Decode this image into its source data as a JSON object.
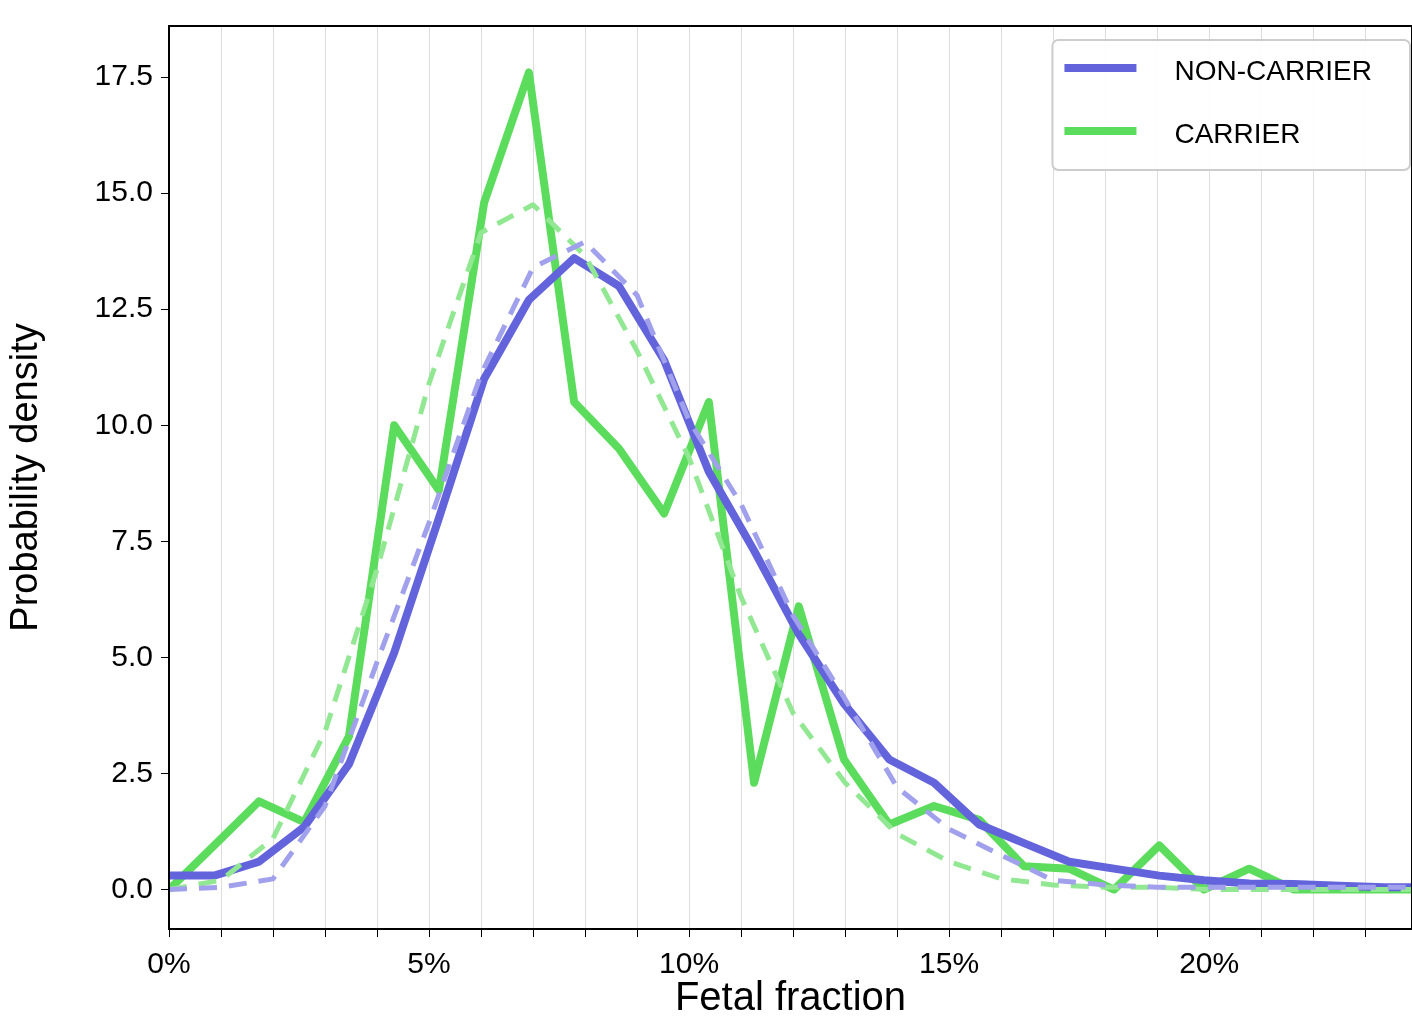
{
  "chart_data": {
    "type": "line",
    "xlabel": "Fetal fraction",
    "ylabel": "Probability density",
    "xlim": [
      0,
      23.9
    ],
    "ylim": [
      -0.85,
      18.6
    ],
    "xticks": [
      {
        "value": 0,
        "label": "0%"
      },
      {
        "value": 1,
        "label": null
      },
      {
        "value": 2,
        "label": null
      },
      {
        "value": 3,
        "label": null
      },
      {
        "value": 4,
        "label": null
      },
      {
        "value": 5,
        "label": "5%"
      },
      {
        "value": 6,
        "label": null
      },
      {
        "value": 7,
        "label": null
      },
      {
        "value": 8,
        "label": null
      },
      {
        "value": 9,
        "label": null
      },
      {
        "value": 10,
        "label": "10%"
      },
      {
        "value": 11,
        "label": null
      },
      {
        "value": 12,
        "label": null
      },
      {
        "value": 13,
        "label": null
      },
      {
        "value": 14,
        "label": null
      },
      {
        "value": 15,
        "label": "15%"
      },
      {
        "value": 16,
        "label": null
      },
      {
        "value": 17,
        "label": null
      },
      {
        "value": 18,
        "label": null
      },
      {
        "value": 19,
        "label": null
      },
      {
        "value": 20,
        "label": "20%"
      },
      {
        "value": 21,
        "label": null
      },
      {
        "value": 22,
        "label": null
      },
      {
        "value": 23,
        "label": null
      }
    ],
    "yticks": [
      {
        "value": 0,
        "label": "0.0"
      },
      2.5,
      {
        "value": 5,
        "label": "5.0"
      },
      7.5,
      {
        "value": 10,
        "label": "10.0"
      },
      12.5,
      {
        "value": 15,
        "label": "15.0"
      },
      17.5
    ],
    "grid": "x",
    "legend": "top right",
    "marker": "none",
    "series": [
      {
        "line_style": "dashed",
        "color": "#a0a0ec",
        "x": [
          0,
          1,
          2,
          3,
          4,
          5,
          6,
          7,
          8,
          9,
          10,
          11,
          12,
          13,
          14,
          15,
          16,
          17,
          18,
          19,
          20,
          21,
          22,
          23,
          23.9
        ],
        "values": [
          0,
          0.05,
          0.23,
          1.8,
          4.9,
          7.9,
          11.1,
          13.4,
          13.95,
          12.8,
          10.1,
          8.3,
          5.9,
          4.1,
          2.2,
          1.3,
          0.74,
          0.2,
          0.1,
          0.05,
          0.05,
          0.05,
          0.05,
          0.05,
          0.05
        ]
      },
      {
        "line_style": "dashed",
        "color": "#92e892",
        "x": [
          0,
          1,
          2,
          3,
          4,
          5,
          6,
          7,
          8,
          9,
          10,
          11,
          12,
          13,
          14,
          15,
          16,
          17,
          18,
          19,
          20,
          21,
          22,
          23,
          23.9
        ],
        "values": [
          0,
          0.2,
          1.1,
          3.4,
          6.9,
          10.9,
          14.15,
          14.75,
          13.65,
          11.6,
          9.3,
          6.3,
          3.8,
          2.3,
          1.2,
          0.6,
          0.23,
          0.1,
          0.05,
          0.05,
          0,
          0,
          0,
          0,
          0
        ]
      },
      {
        "name": "NON-CARRIER",
        "color": "#6363dc",
        "line_style": "solid",
        "x": [
          0,
          0.87,
          1.73,
          2.6,
          3.46,
          4.33,
          5.19,
          6.06,
          6.92,
          7.79,
          8.65,
          9.52,
          10.38,
          11.25,
          12.11,
          12.98,
          13.85,
          14.71,
          15.58,
          16.44,
          17.31,
          18.17,
          19.04,
          19.9,
          20.77,
          21.63,
          22.5,
          23.36,
          23.9
        ],
        "values": [
          0.3,
          0.3,
          0.6,
          1.35,
          2.7,
          5.1,
          8.0,
          11.0,
          12.7,
          13.6,
          13.0,
          11.4,
          9.0,
          7.3,
          5.5,
          4.0,
          2.8,
          2.3,
          1.4,
          1.0,
          0.6,
          0.45,
          0.3,
          0.2,
          0.13,
          0.12,
          0.08,
          0.05,
          0.05
        ]
      },
      {
        "name": "CARRIER",
        "color": "#5cdc5c",
        "line_style": "solid",
        "x": [
          0,
          0.87,
          1.73,
          2.6,
          3.46,
          4.33,
          5.19,
          6.06,
          6.92,
          7.79,
          8.65,
          9.52,
          10.38,
          11.25,
          12.11,
          12.98,
          13.85,
          14.71,
          15.58,
          16.44,
          17.31,
          18.17,
          19.04,
          19.9,
          20.77,
          21.63,
          22.5,
          23.36,
          23.9
        ],
        "values": [
          0,
          0.95,
          1.9,
          1.45,
          3.3,
          10.0,
          8.6,
          14.8,
          17.6,
          10.5,
          9.5,
          8.1,
          10.5,
          2.3,
          6.1,
          2.8,
          1.4,
          1.8,
          1.5,
          0.5,
          0.45,
          0,
          0.95,
          0,
          0.45,
          0,
          0,
          0,
          0
        ]
      }
    ]
  }
}
